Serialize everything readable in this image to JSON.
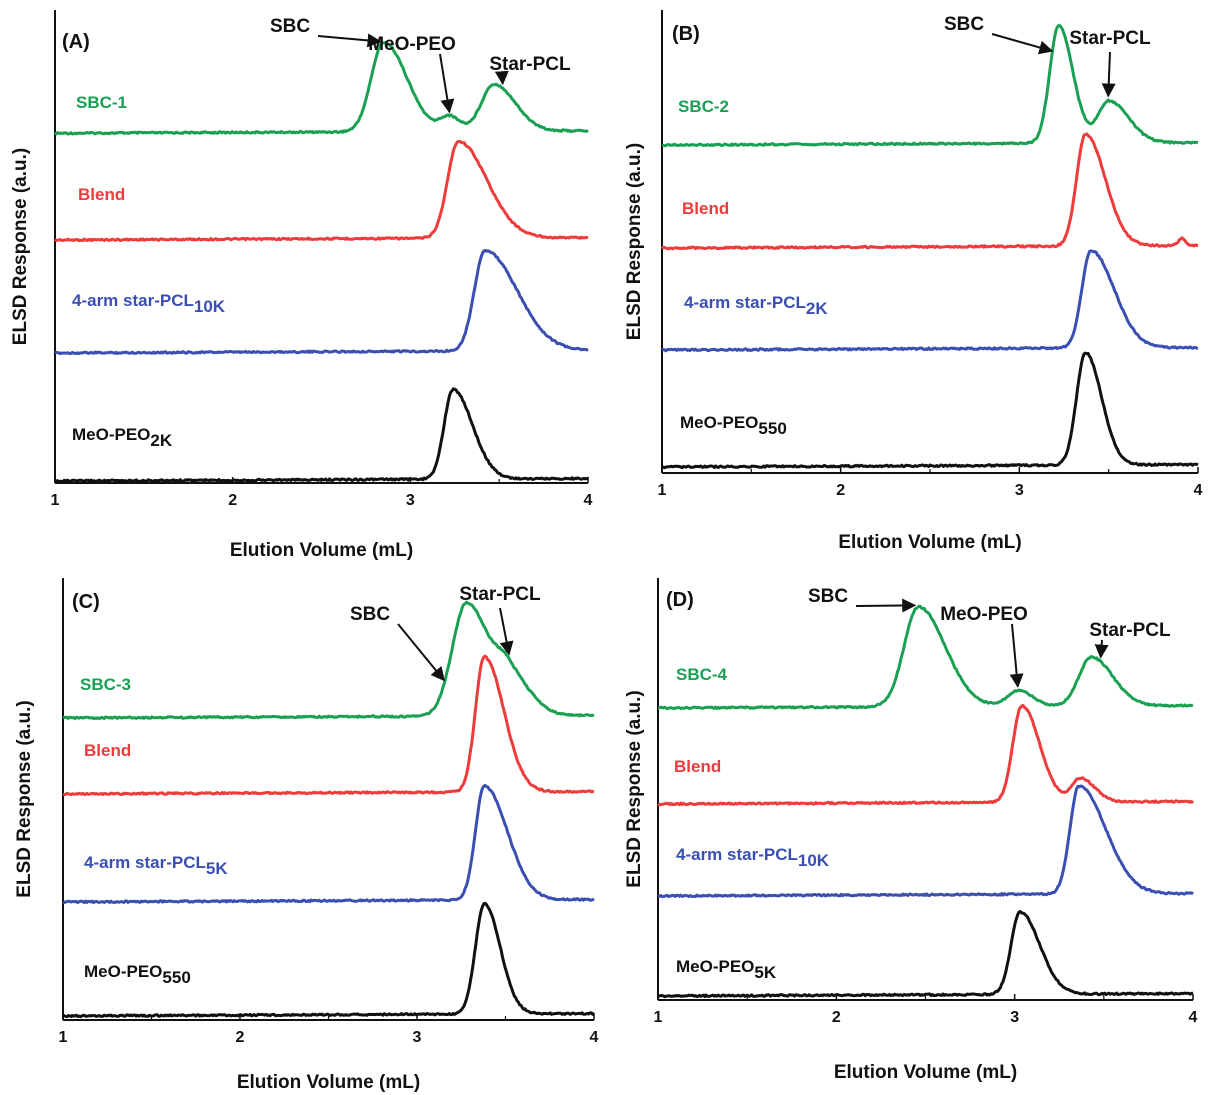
{
  "colors": {
    "green": "#1aa053",
    "red": "#ee3b3b",
    "blue": "#3b4fb3",
    "black": "#111111",
    "axis": "#111111"
  },
  "chart_data": [
    {
      "type": "line",
      "panel_label": "(A)",
      "xlabel": "Elution Volume (mL)",
      "ylabel": "ELSD Response (a.u.)",
      "xlim": [
        1,
        4
      ],
      "xticks": [
        "1",
        "2",
        "3",
        "4"
      ],
      "series": [
        {
          "name": "SBC-1",
          "name_sub": "",
          "color": "green",
          "baseline": 0.06,
          "peaks": [
            [
              2.85,
              0.8,
              0.07,
              0.13
            ],
            [
              3.22,
              0.13,
              0.05,
              0.06
            ],
            [
              3.47,
              0.42,
              0.07,
              0.12
            ]
          ]
        },
        {
          "name": "Blend",
          "name_sub": "",
          "color": "red",
          "baseline": 0.0,
          "peaks": [
            [
              3.27,
              0.82,
              0.06,
              0.16
            ]
          ]
        },
        {
          "name": "4-arm star-PCL",
          "name_sub": "10K",
          "color": "blue",
          "baseline": 0.0,
          "peaks": [
            [
              3.42,
              0.85,
              0.06,
              0.18
            ]
          ]
        },
        {
          "name": "MeO-PEO",
          "name_sub": "2K",
          "color": "black",
          "baseline": 0.0,
          "peaks": [
            [
              3.24,
              0.8,
              0.05,
              0.11
            ]
          ]
        }
      ],
      "annotations": [
        {
          "text": "SBC",
          "arrow_to_x": 2.83,
          "arrow_to_series": 0
        },
        {
          "text": "MeO-PEO",
          "arrow_to_x": 3.22,
          "arrow_to_series": 0
        },
        {
          "text": "Star-PCL",
          "arrow_to_x": 3.52,
          "arrow_to_series": 0
        }
      ]
    },
    {
      "type": "line",
      "panel_label": "(B)",
      "xlabel": "Elution Volume (mL)",
      "ylabel": "ELSD Response (a.u.)",
      "xlim": [
        1,
        4
      ],
      "xticks": [
        "1",
        "2",
        "3",
        "4"
      ],
      "series": [
        {
          "name": "SBC-2",
          "name_sub": "",
          "color": "green",
          "baseline": 0.0,
          "peaks": [
            [
              3.22,
              0.98,
              0.05,
              0.08
            ],
            [
              3.5,
              0.35,
              0.06,
              0.11
            ]
          ]
        },
        {
          "name": "Blend",
          "name_sub": "",
          "color": "red",
          "baseline": 0.0,
          "peaks": [
            [
              3.37,
              0.95,
              0.05,
              0.11
            ],
            [
              3.91,
              0.06,
              0.02,
              0.02
            ]
          ]
        },
        {
          "name": "4-arm star-PCL",
          "name_sub": "2K",
          "color": "blue",
          "baseline": 0.0,
          "peaks": [
            [
              3.4,
              0.87,
              0.05,
              0.13
            ]
          ]
        },
        {
          "name": "MeO-PEO",
          "name_sub": "550",
          "color": "black",
          "baseline": 0.0,
          "peaks": [
            [
              3.37,
              0.9,
              0.05,
              0.09
            ]
          ]
        }
      ],
      "annotations": [
        {
          "text": "SBC",
          "arrow_to_x": 3.18,
          "arrow_to_series": 0
        },
        {
          "text": "Star-PCL",
          "arrow_to_x": 3.5,
          "arrow_to_series": 0
        }
      ]
    },
    {
      "type": "line",
      "panel_label": "(C)",
      "xlabel": "Elution Volume (mL)",
      "ylabel": "ELSD Response (a.u.)",
      "xlim": [
        1,
        4
      ],
      "xticks": [
        "1",
        "2",
        "3",
        "4"
      ],
      "series": [
        {
          "name": "SBC-3",
          "name_sub": "",
          "color": "green",
          "baseline": 0.0,
          "peaks": [
            [
              3.28,
              0.93,
              0.08,
              0.13
            ],
            [
              3.52,
              0.3,
              0.07,
              0.12
            ]
          ]
        },
        {
          "name": "Blend",
          "name_sub": "",
          "color": "red",
          "baseline": 0.0,
          "peaks": [
            [
              3.38,
              0.98,
              0.05,
              0.11
            ]
          ]
        },
        {
          "name": "4-arm star-PCL",
          "name_sub": "5K",
          "color": "blue",
          "baseline": 0.0,
          "peaks": [
            [
              3.38,
              0.95,
              0.05,
              0.13
            ]
          ]
        },
        {
          "name": "MeO-PEO",
          "name_sub": "550",
          "color": "black",
          "baseline": 0.0,
          "peaks": [
            [
              3.38,
              0.92,
              0.05,
              0.09
            ]
          ]
        }
      ],
      "annotations": [
        {
          "text": "SBC",
          "arrow_to_x": 3.15,
          "arrow_to_series": 0
        },
        {
          "text": "Star-PCL",
          "arrow_to_x": 3.52,
          "arrow_to_series": 0
        }
      ]
    },
    {
      "type": "line",
      "panel_label": "(D)",
      "xlabel": "Elution Volume (mL)",
      "ylabel": "ELSD Response (a.u.)",
      "xlim": [
        1,
        4
      ],
      "xticks": [
        "1",
        "2",
        "3",
        "4"
      ],
      "series": [
        {
          "name": "SBC-4",
          "name_sub": "",
          "color": "green",
          "baseline": 0.0,
          "peaks": [
            [
              2.46,
              0.82,
              0.08,
              0.15
            ],
            [
              3.02,
              0.13,
              0.06,
              0.08
            ],
            [
              3.43,
              0.4,
              0.07,
              0.12
            ]
          ]
        },
        {
          "name": "Blend",
          "name_sub": "",
          "color": "red",
          "baseline": 0.0,
          "peaks": [
            [
              3.04,
              0.82,
              0.05,
              0.1
            ],
            [
              3.37,
              0.2,
              0.05,
              0.08
            ]
          ]
        },
        {
          "name": "4-arm star-PCL",
          "name_sub": "10K",
          "color": "blue",
          "baseline": 0.0,
          "peaks": [
            [
              3.36,
              0.9,
              0.05,
              0.15
            ]
          ]
        },
        {
          "name": "MeO-PEO",
          "name_sub": "5K",
          "color": "black",
          "baseline": 0.0,
          "peaks": [
            [
              3.03,
              0.75,
              0.05,
              0.11
            ]
          ]
        }
      ],
      "annotations": [
        {
          "text": "SBC",
          "arrow_to_x": 2.44,
          "arrow_to_series": 0
        },
        {
          "text": "MeO-PEO",
          "arrow_to_x": 3.02,
          "arrow_to_series": 0
        },
        {
          "text": "Star-PCL",
          "arrow_to_x": 3.48,
          "arrow_to_series": 0
        }
      ]
    }
  ]
}
